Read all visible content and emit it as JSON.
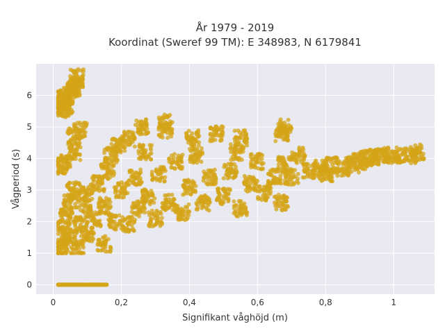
{
  "chart_data": {
    "type": "scatter",
    "title": "År 1979 - 2019",
    "subtitle": "Koordinat (Sweref 99 TM): E 348983, N 6179841",
    "xlabel": "Signifikant våghöjd (m)",
    "ylabel": "Vågperiod (s)",
    "xlim": [
      -0.05,
      1.12
    ],
    "ylim": [
      -0.3,
      7.0
    ],
    "x_ticks": [
      0,
      0.2,
      0.4,
      0.6,
      0.8,
      1
    ],
    "x_tick_labels": [
      "0",
      "0,2",
      "0,4",
      "0,6",
      "0,8",
      "1"
    ],
    "y_ticks": [
      0,
      1,
      2,
      3,
      4,
      5,
      6
    ],
    "y_tick_labels": [
      "0",
      "1",
      "2",
      "3",
      "4",
      "5",
      "6"
    ],
    "grid": true,
    "background": "#e9eaf1",
    "marker_color": "#d4a418",
    "marker_opacity": 0.75,
    "series": [
      {
        "values": [
          {
            "x": 0.02,
            "y": 0
          },
          {
            "x": 0.04,
            "y": 0
          },
          {
            "x": 0.06,
            "y": 0
          },
          {
            "x": 0.08,
            "y": 0
          },
          {
            "x": 0.1,
            "y": 0
          },
          {
            "x": 0.12,
            "y": 0
          },
          {
            "x": 0.14,
            "y": 0
          },
          {
            "x": 0.02,
            "y": 5.55
          },
          {
            "x": 0.03,
            "y": 5.75
          },
          {
            "x": 0.04,
            "y": 5.95
          },
          {
            "x": 0.05,
            "y": 6.1
          },
          {
            "x": 0.06,
            "y": 6.2
          },
          {
            "x": 0.07,
            "y": 6.35
          },
          {
            "x": 0.07,
            "y": 6.6
          },
          {
            "x": 0.02,
            "y": 5.9
          },
          {
            "x": 0.04,
            "y": 5.6
          },
          {
            "x": 0.02,
            "y": 3.75
          },
          {
            "x": 0.03,
            "y": 3.9
          },
          {
            "x": 0.06,
            "y": 4.2
          },
          {
            "x": 0.06,
            "y": 4.7
          },
          {
            "x": 0.08,
            "y": 4.9
          },
          {
            "x": 0.02,
            "y": 1.1
          },
          {
            "x": 0.03,
            "y": 1.3
          },
          {
            "x": 0.03,
            "y": 1.8
          },
          {
            "x": 0.04,
            "y": 2.2
          },
          {
            "x": 0.05,
            "y": 1.5
          },
          {
            "x": 0.05,
            "y": 2.6
          },
          {
            "x": 0.06,
            "y": 3.0
          },
          {
            "x": 0.07,
            "y": 1.2
          },
          {
            "x": 0.08,
            "y": 1.9
          },
          {
            "x": 0.09,
            "y": 2.5
          },
          {
            "x": 0.1,
            "y": 1.6
          },
          {
            "x": 0.1,
            "y": 2.9
          },
          {
            "x": 0.12,
            "y": 2.1
          },
          {
            "x": 0.13,
            "y": 3.2
          },
          {
            "x": 0.15,
            "y": 1.3
          },
          {
            "x": 0.15,
            "y": 2.5
          },
          {
            "x": 0.16,
            "y": 3.6
          },
          {
            "x": 0.17,
            "y": 4.1
          },
          {
            "x": 0.18,
            "y": 2.0
          },
          {
            "x": 0.19,
            "y": 4.4
          },
          {
            "x": 0.2,
            "y": 3.0
          },
          {
            "x": 0.22,
            "y": 1.9
          },
          {
            "x": 0.22,
            "y": 4.6
          },
          {
            "x": 0.24,
            "y": 3.4
          },
          {
            "x": 0.25,
            "y": 2.4
          },
          {
            "x": 0.27,
            "y": 4.2
          },
          {
            "x": 0.28,
            "y": 2.8
          },
          {
            "x": 0.3,
            "y": 2.1
          },
          {
            "x": 0.31,
            "y": 3.5
          },
          {
            "x": 0.33,
            "y": 4.9
          },
          {
            "x": 0.34,
            "y": 2.6
          },
          {
            "x": 0.36,
            "y": 3.9
          },
          {
            "x": 0.38,
            "y": 2.3
          },
          {
            "x": 0.4,
            "y": 3.1
          },
          {
            "x": 0.42,
            "y": 4.1
          },
          {
            "x": 0.44,
            "y": 2.6
          },
          {
            "x": 0.46,
            "y": 3.4
          },
          {
            "x": 0.48,
            "y": 4.8
          },
          {
            "x": 0.5,
            "y": 2.8
          },
          {
            "x": 0.52,
            "y": 3.6
          },
          {
            "x": 0.54,
            "y": 4.2
          },
          {
            "x": 0.55,
            "y": 2.4
          },
          {
            "x": 0.58,
            "y": 3.2
          },
          {
            "x": 0.6,
            "y": 3.9
          },
          {
            "x": 0.62,
            "y": 2.9
          },
          {
            "x": 0.65,
            "y": 3.4
          },
          {
            "x": 0.67,
            "y": 4.8
          },
          {
            "x": 0.68,
            "y": 3.8
          },
          {
            "x": 0.7,
            "y": 3.4
          },
          {
            "x": 0.72,
            "y": 4.1
          },
          {
            "x": 0.75,
            "y": 3.6
          },
          {
            "x": 0.78,
            "y": 3.7
          },
          {
            "x": 0.8,
            "y": 3.5
          },
          {
            "x": 0.82,
            "y": 3.8
          },
          {
            "x": 0.85,
            "y": 3.7
          },
          {
            "x": 0.88,
            "y": 3.8
          },
          {
            "x": 0.9,
            "y": 3.9
          },
          {
            "x": 0.92,
            "y": 4.0
          },
          {
            "x": 0.94,
            "y": 4.05
          },
          {
            "x": 0.96,
            "y": 4.1
          },
          {
            "x": 0.99,
            "y": 4.1
          },
          {
            "x": 1.02,
            "y": 4.1
          },
          {
            "x": 1.05,
            "y": 4.1
          },
          {
            "x": 1.07,
            "y": 4.2
          },
          {
            "x": 0.33,
            "y": 5.15
          },
          {
            "x": 0.26,
            "y": 5.0
          },
          {
            "x": 0.41,
            "y": 4.65
          },
          {
            "x": 0.55,
            "y": 4.65
          },
          {
            "x": 0.68,
            "y": 5.0
          },
          {
            "x": 0.67,
            "y": 2.6
          }
        ]
      }
    ]
  }
}
